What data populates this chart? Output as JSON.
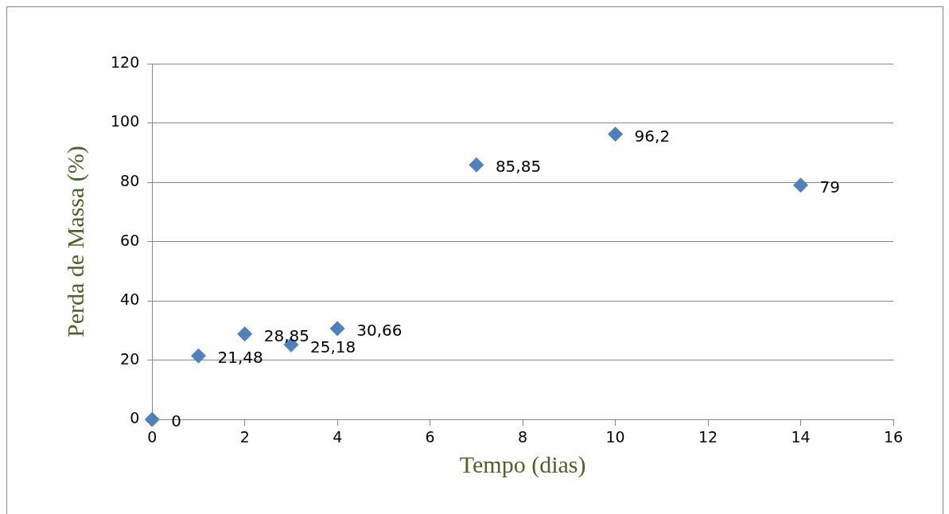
{
  "chart_data": {
    "type": "scatter",
    "xlabel": "Tempo (dias)",
    "ylabel": "Perda de Massa (%)",
    "x": [
      0,
      1,
      2,
      3,
      4,
      7,
      10,
      14
    ],
    "series": [
      {
        "color": "#4f81bd",
        "values": [
          0,
          21.48,
          28.85,
          25.18,
          30.66,
          85.85,
          96.2,
          79
        ],
        "value_labels": [
          "0",
          "21,48",
          "28,85",
          "25,18",
          "30,66",
          "85,85",
          "96,2",
          "79"
        ]
      }
    ],
    "xlim": [
      0,
      16
    ],
    "xticks": [
      0,
      2,
      4,
      6,
      8,
      10,
      12,
      14,
      16
    ],
    "ylim": [
      0,
      120
    ],
    "yticks": [
      0,
      20,
      40,
      60,
      80,
      100,
      120
    ],
    "grid": "y",
    "legend": false,
    "marker": "diamond"
  }
}
